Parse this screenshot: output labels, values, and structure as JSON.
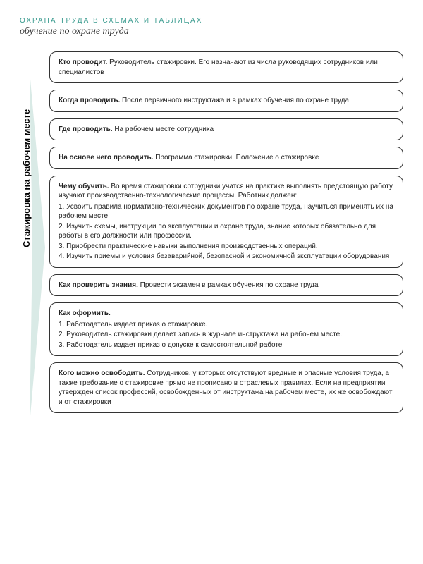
{
  "header": {
    "category": "ОХРАНА ТРУДА В СХЕМАХ И ТАБЛИЦАХ",
    "subtitle": "обучение по охране труда"
  },
  "sideLabel": "Стажировка на рабочем месте",
  "colors": {
    "accent": "#3a9b8f",
    "chevron": "#d9eae6",
    "border": "#333333",
    "text": "#222222",
    "bg": "#ffffff"
  },
  "boxes": [
    {
      "label": "Кто проводит.",
      "text": " Руководитель стажировки. Его назначают из числа руководящих сотрудников или специалистов"
    },
    {
      "label": "Когда проводить.",
      "text": " После первичного инструктажа и в рамках обучения по охране труда"
    },
    {
      "label": "Где проводить.",
      "text": " На рабочем месте сотрудника"
    },
    {
      "label": "На основе чего проводить.",
      "text": " Программа стажировки. Положение о стажировке"
    },
    {
      "label": "Чему обучить.",
      "text": " Во время стажировки сотрудники учатся на практике выполнять предстоящую работу, изучают производственно-технологические процессы. Работник должен:",
      "lines": [
        "1. Усвоить правила нормативно-технических документов по охране труда, научиться применять их на рабочем месте.",
        "2. Изучить схемы, инструкции по эксплуатации и охране труда, знание которых обязательно для работы в его должности или профессии.",
        "3. Приобрести практические навыки выполнения производственных операций.",
        "4. Изучить приемы и условия безаварийной, безопасной и экономичной эксплуатации оборудования"
      ]
    },
    {
      "label": "Как проверить знания.",
      "text": " Провести экзамен в рамках обучения по охране труда"
    },
    {
      "label": "Как оформить.",
      "text": "",
      "lines": [
        "1. Работодатель издает приказ о стажировке.",
        "2. Руководитель стажировки делает запись в журнале инструктажа на рабочем месте.",
        "3. Работодатель издает приказ о допуске к самостоятельной работе"
      ]
    },
    {
      "label": "Кого можно освободить.",
      "text": " Сотрудников, у которых отсутствуют вредные и опасные условия труда, а также требование о стажировке прямо не прописано в отраслевых правилах. Если на предприятии утвержден список профессий, освобожденных от инструктажа на рабочем месте, их же освобождают и от стажировки"
    }
  ]
}
